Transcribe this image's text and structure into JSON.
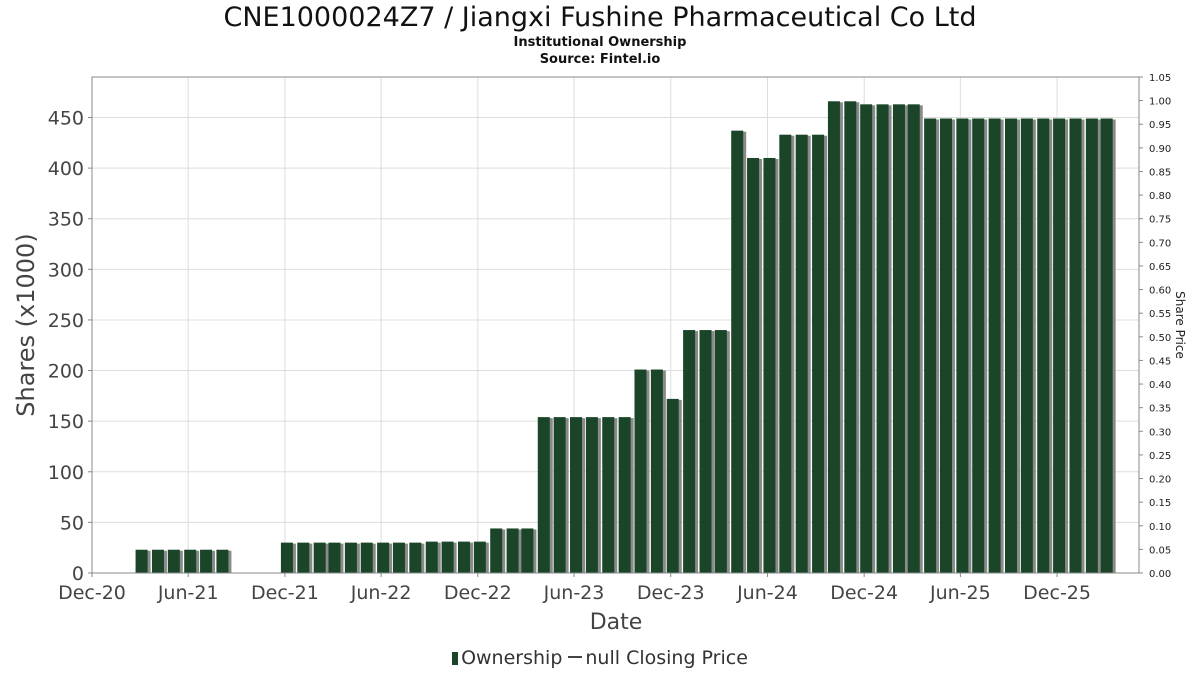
{
  "chart_data": {
    "type": "bar",
    "title": "CNE1000024Z7 / Jiangxi Fushine Pharmaceutical Co Ltd",
    "subtitle": "Institutional Ownership",
    "source": "Source: Fintel.io",
    "xlabel": "Date",
    "ylabel": "Shares (x1000)",
    "y2label": "Share Price",
    "ylim": [
      0,
      490
    ],
    "y2lim": [
      0,
      1.05
    ],
    "yticks": [
      0,
      50,
      100,
      150,
      200,
      250,
      300,
      350,
      400,
      450
    ],
    "y2ticks": [
      "0.00",
      "0.05",
      "0.10",
      "0.15",
      "0.20",
      "0.25",
      "0.30",
      "0.35",
      "0.40",
      "0.45",
      "0.50",
      "0.55",
      "0.60",
      "0.65",
      "0.70",
      "0.75",
      "0.80",
      "0.85",
      "0.90",
      "0.95",
      "1.00",
      "1.05"
    ],
    "xrange": [
      "2020-12-01",
      "2026-05-05"
    ],
    "xticks": [
      {
        "label": "Dec-20",
        "date": "2020-12-01"
      },
      {
        "label": "Jun-21",
        "date": "2021-06-01"
      },
      {
        "label": "Dec-21",
        "date": "2021-12-01"
      },
      {
        "label": "Jun-22",
        "date": "2022-06-01"
      },
      {
        "label": "Dec-22",
        "date": "2022-12-01"
      },
      {
        "label": "Jun-23",
        "date": "2023-06-01"
      },
      {
        "label": "Dec-23",
        "date": "2023-12-01"
      },
      {
        "label": "Jun-24",
        "date": "2024-06-01"
      },
      {
        "label": "Dec-24",
        "date": "2024-12-01"
      },
      {
        "label": "Jun-25",
        "date": "2025-06-01"
      },
      {
        "label": "Dec-25",
        "date": "2025-12-01"
      }
    ],
    "grid": true,
    "legend_position": "bottom",
    "colors": {
      "bar": "#1a4528",
      "bar_shadow": "#8a8a8a",
      "grid": "#dddddd",
      "axis": "#888888"
    },
    "series": [
      {
        "name": "Ownership",
        "points": [
          [
            "2021-03-01",
            23
          ],
          [
            "2021-04-01",
            23
          ],
          [
            "2021-05-01",
            23
          ],
          [
            "2021-06-01",
            23
          ],
          [
            "2021-07-01",
            23
          ],
          [
            "2021-08-01",
            23
          ],
          [
            "2021-12-01",
            30
          ],
          [
            "2022-01-01",
            30
          ],
          [
            "2022-02-01",
            30
          ],
          [
            "2022-03-01",
            30
          ],
          [
            "2022-04-01",
            30
          ],
          [
            "2022-05-01",
            30
          ],
          [
            "2022-06-01",
            30
          ],
          [
            "2022-07-01",
            30
          ],
          [
            "2022-08-01",
            30
          ],
          [
            "2022-09-01",
            31
          ],
          [
            "2022-10-01",
            31
          ],
          [
            "2022-11-01",
            31
          ],
          [
            "2022-12-01",
            31
          ],
          [
            "2023-01-01",
            44
          ],
          [
            "2023-02-01",
            44
          ],
          [
            "2023-03-01",
            44
          ],
          [
            "2023-04-01",
            154
          ],
          [
            "2023-05-01",
            154
          ],
          [
            "2023-06-01",
            154
          ],
          [
            "2023-07-01",
            154
          ],
          [
            "2023-08-01",
            154
          ],
          [
            "2023-09-01",
            154
          ],
          [
            "2023-10-01",
            201
          ],
          [
            "2023-11-01",
            201
          ],
          [
            "2023-12-01",
            172
          ],
          [
            "2024-01-01",
            240
          ],
          [
            "2024-02-01",
            240
          ],
          [
            "2024-03-01",
            240
          ],
          [
            "2024-04-01",
            437
          ],
          [
            "2024-05-01",
            410
          ],
          [
            "2024-06-01",
            410
          ],
          [
            "2024-07-01",
            433
          ],
          [
            "2024-08-01",
            433
          ],
          [
            "2024-09-01",
            433
          ],
          [
            "2024-10-01",
            466
          ],
          [
            "2024-11-01",
            466
          ],
          [
            "2024-12-01",
            463
          ],
          [
            "2025-01-01",
            463
          ],
          [
            "2025-02-01",
            463
          ],
          [
            "2025-03-01",
            463
          ],
          [
            "2025-04-01",
            449
          ],
          [
            "2025-05-01",
            449
          ],
          [
            "2025-06-01",
            449
          ],
          [
            "2025-07-01",
            449
          ],
          [
            "2025-08-01",
            449
          ],
          [
            "2025-09-01",
            449
          ],
          [
            "2025-10-01",
            449
          ],
          [
            "2025-11-01",
            449
          ],
          [
            "2025-12-01",
            449
          ],
          [
            "2026-01-01",
            449
          ],
          [
            "2026-02-01",
            449
          ],
          [
            "2026-03-01",
            449
          ]
        ]
      },
      {
        "name": "null Closing Price",
        "points": []
      }
    ]
  }
}
